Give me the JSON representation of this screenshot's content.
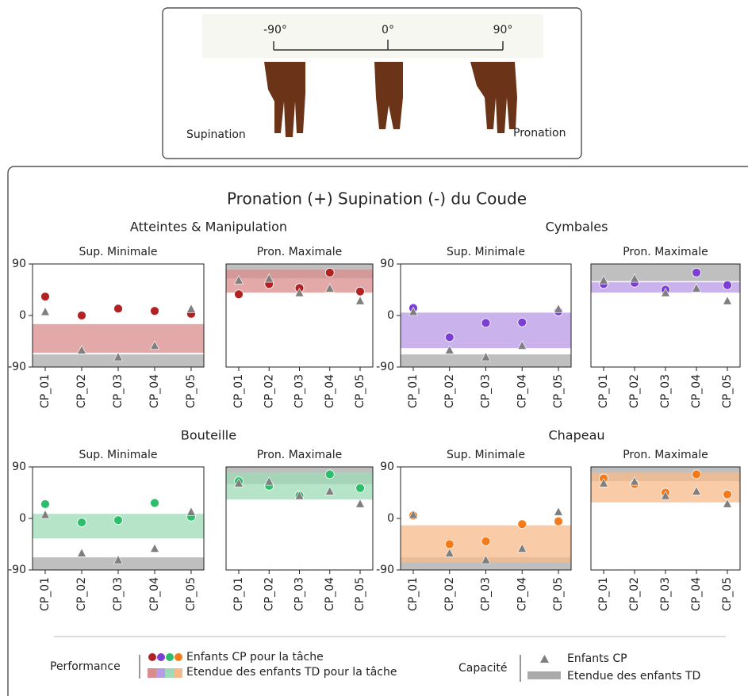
{
  "diagram": {
    "scale_labels": [
      "-90°",
      "0°",
      "90°"
    ],
    "left_label": "Supination",
    "right_label": "Pronation"
  },
  "title": "Pronation (+) Supination (-) du Coude",
  "groups": [
    "Atteintes & Manipulation",
    "Cymbales",
    "Bouteille",
    "Chapeau"
  ],
  "chart_data": [
    {
      "type": "scatter",
      "subtitle": "Sup. Minimale",
      "categories": [
        "CP_01",
        "CP_02",
        "CP_03",
        "CP_04",
        "CP_05"
      ],
      "ylim": [
        -90,
        90
      ],
      "yticks": [
        -90,
        0,
        90
      ],
      "band": [
        -65,
        -15
      ],
      "band_color": "#d98c8c",
      "capacity_band": [
        -90,
        -68
      ],
      "capacity_band_color": "#aaaaaa",
      "series": [
        {
          "color": "#b22222",
          "marker": "circle",
          "values": [
            33,
            0,
            12,
            8,
            3
          ]
        },
        {
          "color": "#7f7f7f",
          "marker": "triangle",
          "values": [
            7,
            -60,
            -72,
            -52,
            12
          ]
        }
      ]
    },
    {
      "type": "scatter",
      "subtitle": "Pron. Maximale",
      "categories": [
        "CP_01",
        "CP_02",
        "CP_03",
        "CP_04",
        "CP_05"
      ],
      "ylim": [
        -90,
        90
      ],
      "band": [
        40,
        80
      ],
      "band_color": "#d98c8c",
      "capacity_band": [
        65,
        90
      ],
      "capacity_band_color": "#aaaaaa",
      "series": [
        {
          "color": "#b22222",
          "marker": "circle",
          "values": [
            37,
            55,
            48,
            75,
            42
          ]
        },
        {
          "color": "#7f7f7f",
          "marker": "triangle",
          "values": [
            62,
            65,
            40,
            48,
            26
          ]
        }
      ]
    },
    {
      "type": "scatter",
      "subtitle": "Sup. Minimale",
      "categories": [
        "CP_01",
        "CP_02",
        "CP_03",
        "CP_04",
        "CP_05"
      ],
      "ylim": [
        -90,
        90
      ],
      "yticks": [
        -90,
        0,
        90
      ],
      "band": [
        -57,
        5
      ],
      "band_color": "#b89ae6",
      "capacity_band": [
        -90,
        -68
      ],
      "capacity_band_color": "#aaaaaa",
      "series": [
        {
          "color": "#7b3fd4",
          "marker": "circle",
          "values": [
            13,
            -38,
            -13,
            -12,
            7
          ]
        },
        {
          "color": "#7f7f7f",
          "marker": "triangle",
          "values": [
            7,
            -60,
            -72,
            -52,
            12
          ]
        }
      ]
    },
    {
      "type": "scatter",
      "subtitle": "Pron. Maximale",
      "categories": [
        "CP_01",
        "CP_02",
        "CP_03",
        "CP_04",
        "CP_05"
      ],
      "ylim": [
        -90,
        90
      ],
      "band": [
        40,
        58
      ],
      "band_color": "#b89ae6",
      "capacity_band": [
        60,
        90
      ],
      "capacity_band_color": "#aaaaaa",
      "series": [
        {
          "color": "#7b3fd4",
          "marker": "circle",
          "values": [
            55,
            57,
            45,
            75,
            53
          ]
        },
        {
          "color": "#7f7f7f",
          "marker": "triangle",
          "values": [
            62,
            65,
            40,
            48,
            26
          ]
        }
      ]
    },
    {
      "type": "scatter",
      "subtitle": "Sup. Minimale",
      "categories": [
        "CP_01",
        "CP_02",
        "CP_03",
        "CP_04",
        "CP_05"
      ],
      "ylim": [
        -90,
        90
      ],
      "yticks": [
        -90,
        0,
        90
      ],
      "band": [
        -35,
        8
      ],
      "band_color": "#9ddbb6",
      "capacity_band": [
        -90,
        -68
      ],
      "capacity_band_color": "#aaaaaa",
      "series": [
        {
          "color": "#2ebd6b",
          "marker": "circle",
          "values": [
            25,
            -7,
            -3,
            27,
            3
          ]
        },
        {
          "color": "#7f7f7f",
          "marker": "triangle",
          "values": [
            7,
            -60,
            -72,
            -52,
            12
          ]
        }
      ]
    },
    {
      "type": "scatter",
      "subtitle": "Pron. Maximale",
      "categories": [
        "CP_01",
        "CP_02",
        "CP_03",
        "CP_04",
        "CP_05"
      ],
      "ylim": [
        -90,
        90
      ],
      "band": [
        33,
        80
      ],
      "band_color": "#9ddbb6",
      "capacity_band": [
        60,
        90
      ],
      "capacity_band_color": "#aaaaaa",
      "series": [
        {
          "color": "#2ebd6b",
          "marker": "circle",
          "values": [
            65,
            57,
            40,
            77,
            53
          ]
        },
        {
          "color": "#7f7f7f",
          "marker": "triangle",
          "values": [
            62,
            65,
            40,
            48,
            26
          ]
        }
      ]
    },
    {
      "type": "scatter",
      "subtitle": "Sup. Minimale",
      "categories": [
        "CP_01",
        "CP_02",
        "CP_03",
        "CP_04",
        "CP_05"
      ],
      "ylim": [
        -90,
        90
      ],
      "yticks": [
        -90,
        0,
        90
      ],
      "band": [
        -77,
        -12
      ],
      "band_color": "#f7b98a",
      "capacity_band": [
        -90,
        -68
      ],
      "capacity_band_color": "#aaaaaa",
      "series": [
        {
          "color": "#f57a1a",
          "marker": "circle",
          "values": [
            5,
            -45,
            -40,
            -10,
            -5
          ]
        },
        {
          "color": "#7f7f7f",
          "marker": "triangle",
          "values": [
            7,
            -60,
            -72,
            -52,
            12
          ]
        }
      ]
    },
    {
      "type": "scatter",
      "subtitle": "Pron. Maximale",
      "categories": [
        "CP_01",
        "CP_02",
        "CP_03",
        "CP_04",
        "CP_05"
      ],
      "ylim": [
        -90,
        90
      ],
      "band": [
        28,
        80
      ],
      "band_color": "#f7b98a",
      "capacity_band": [
        65,
        90
      ],
      "capacity_band_color": "#aaaaaa",
      "series": [
        {
          "color": "#f57a1a",
          "marker": "circle",
          "values": [
            70,
            60,
            45,
            77,
            42
          ]
        },
        {
          "color": "#7f7f7f",
          "marker": "triangle",
          "values": [
            62,
            65,
            40,
            48,
            26
          ]
        }
      ]
    }
  ],
  "legend": {
    "performance_title": "Performance",
    "performance_points": "Enfants CP pour la tâche",
    "performance_band": "Etendue des enfants TD pour la tâche",
    "capacity_title": "Capacité",
    "capacity_points": "Enfants CP",
    "capacity_band": "Etendue des enfants TD"
  }
}
